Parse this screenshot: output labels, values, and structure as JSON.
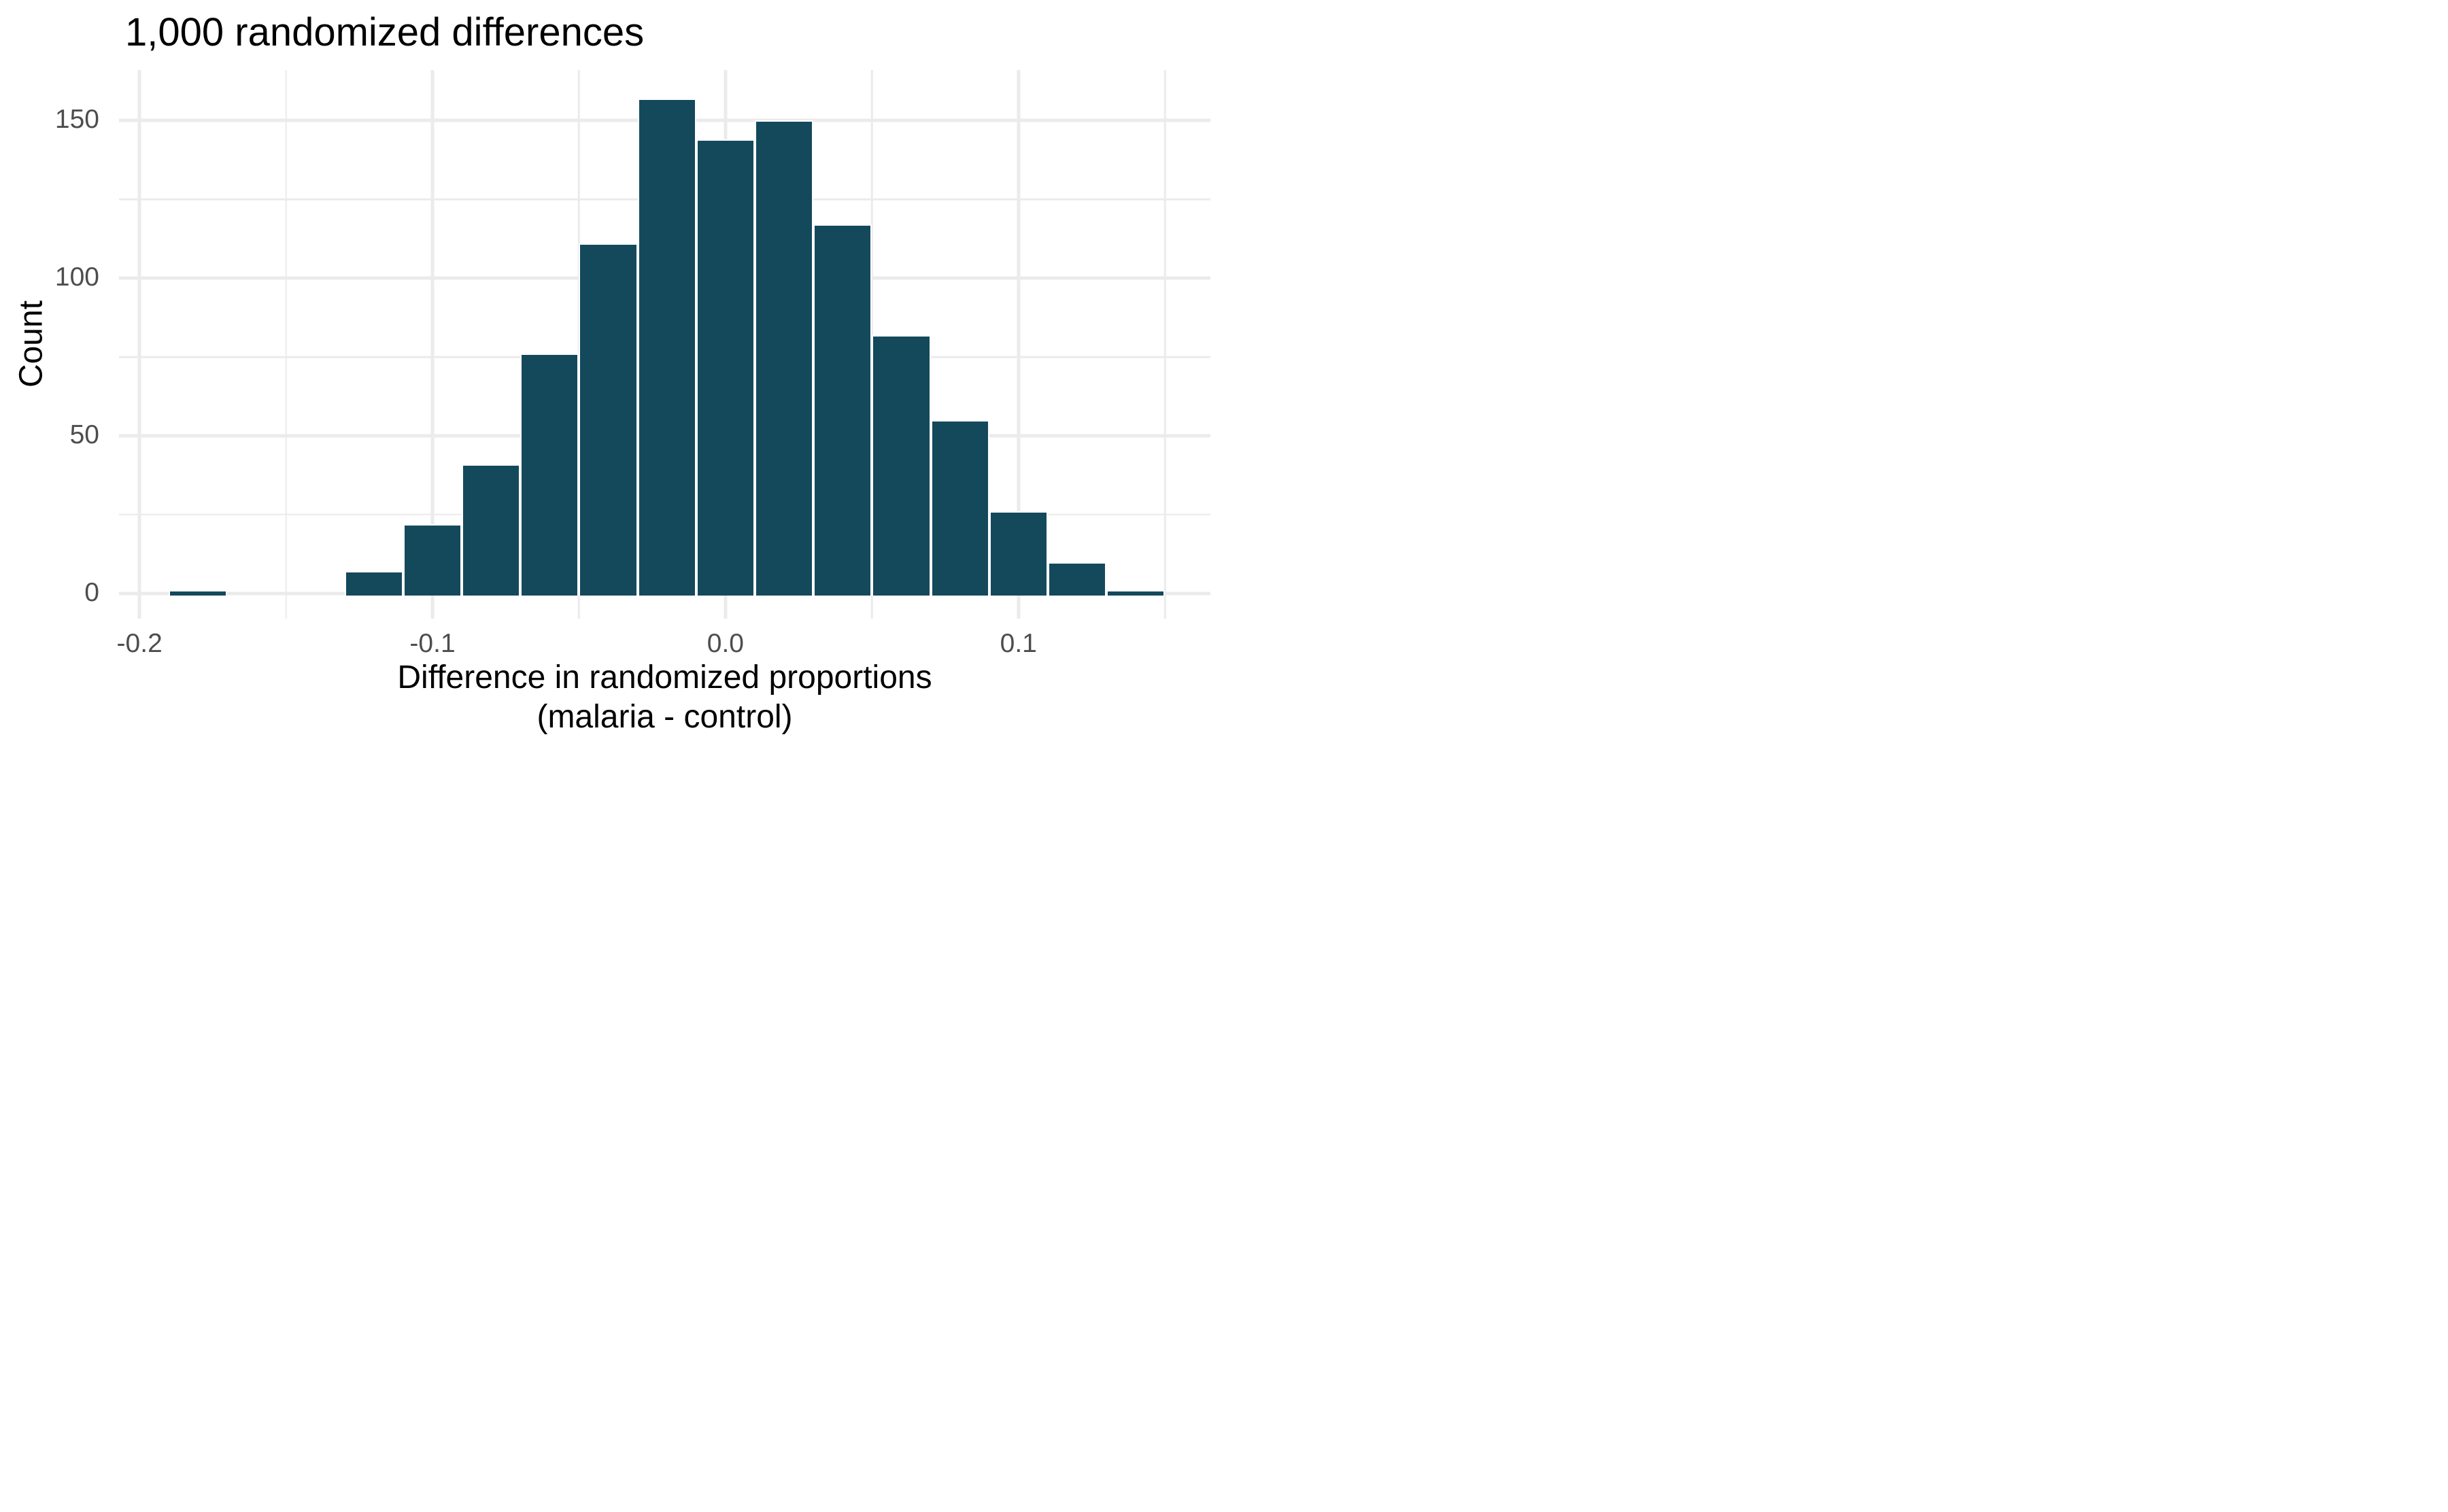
{
  "figure": {
    "background": "#ffffff"
  },
  "chart_data": {
    "type": "bar",
    "subtype": "histogram",
    "title": "1,000 randomized differences",
    "xlabel": "Difference in randomized proportions (malaria - control)",
    "xlabel_lines": [
      "Difference in randomized proportions",
      "(malaria - control)"
    ],
    "ylabel": "Count",
    "total_count": 1000,
    "bin_width": 0.02,
    "bins": [
      {
        "center": -0.18,
        "count": 1
      },
      {
        "center": -0.12,
        "count": 7
      },
      {
        "center": -0.1,
        "count": 22
      },
      {
        "center": -0.08,
        "count": 41
      },
      {
        "center": -0.06,
        "count": 76
      },
      {
        "center": -0.04,
        "count": 111
      },
      {
        "center": -0.02,
        "count": 157
      },
      {
        "center": 0.0,
        "count": 144
      },
      {
        "center": 0.02,
        "count": 150
      },
      {
        "center": 0.04,
        "count": 117
      },
      {
        "center": 0.06,
        "count": 82
      },
      {
        "center": 0.08,
        "count": 55
      },
      {
        "center": 0.1,
        "count": 26
      },
      {
        "center": 0.12,
        "count": 10
      },
      {
        "center": 0.14,
        "count": 1
      }
    ],
    "x_axis": {
      "range": [
        -0.207,
        0.1655
      ],
      "major_ticks": [
        -0.2,
        -0.1,
        0.0,
        0.1
      ],
      "minor_ticks": [
        -0.15,
        -0.05,
        0.05,
        0.15
      ],
      "tick_labels": [
        "-0.2",
        "-0.1",
        "0.0",
        "0.1"
      ],
      "grid": true
    },
    "y_axis": {
      "range": [
        -8,
        166
      ],
      "major_ticks": [
        0,
        50,
        100,
        150
      ],
      "minor_ticks": [
        25,
        75,
        125
      ],
      "tick_labels": [
        "0",
        "50",
        "100",
        "150"
      ],
      "grid": true
    },
    "style": {
      "bar_fill": "#14495c",
      "bar_stroke": "#ffffff",
      "grid_color": "#ebebeb",
      "tick_label_color": "#4d4d4d",
      "text_color": "#000000",
      "background": "#ffffff",
      "legend": "none"
    }
  }
}
